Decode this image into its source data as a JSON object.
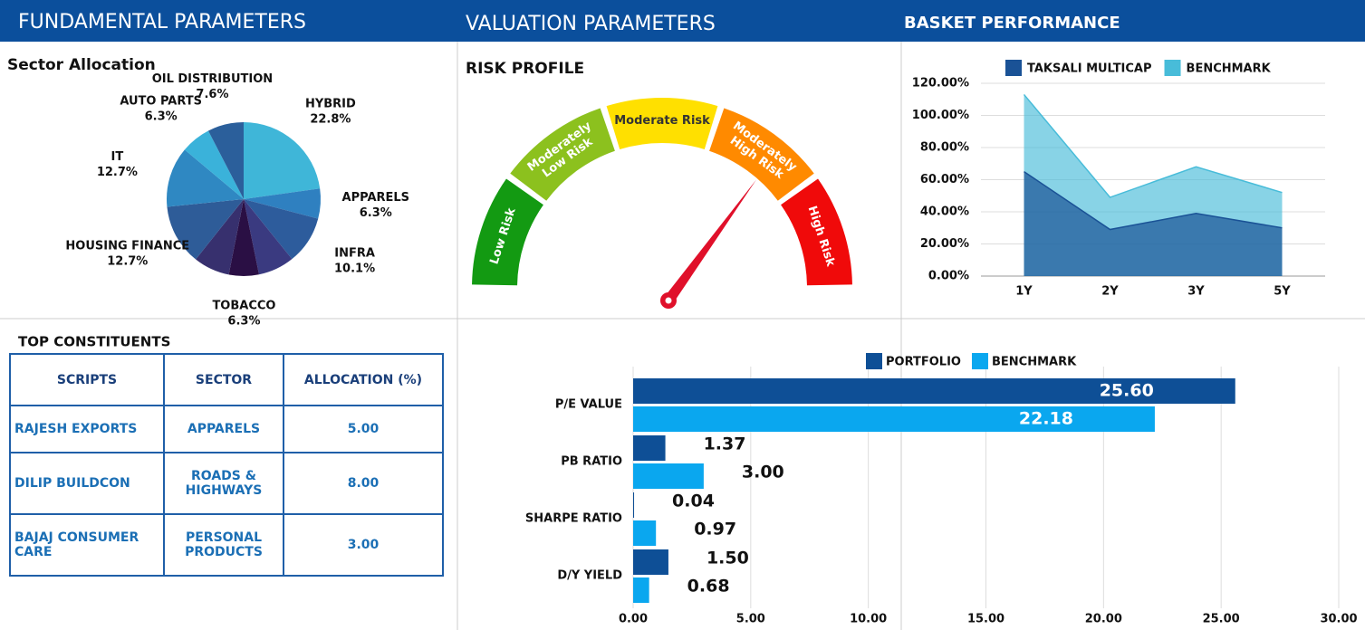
{
  "header": {
    "sections": [
      "FUNDAMENTAL PARAMETERS",
      "VALUATION PARAMETERS",
      "BASKET PERFORMANCE"
    ]
  },
  "chart_data": [
    {
      "type": "pie",
      "title": "Sector Allocation",
      "categories": [
        "HYBRID",
        "APPARELS",
        "INFRA",
        null,
        "TOBACCO",
        null,
        "HOUSING FINANCE",
        "IT",
        "AUTO PARTS",
        "OIL DISTRIBUTION"
      ],
      "values": [
        22.8,
        6.3,
        10.1,
        7.6,
        6.3,
        7.6,
        12.7,
        12.7,
        6.3,
        7.6
      ],
      "value_labels": [
        "22.8%",
        "6.3%",
        "10.1%",
        null,
        "6.3%",
        null,
        "12.7%",
        "12.7%",
        "6.3%",
        "7.6%"
      ],
      "colors": [
        "#3fb6d8",
        "#2f80c0",
        "#2d5c9c",
        "#3a3a80",
        "#2a0f44",
        "#37306e",
        "#2e5c98",
        "#2f88c2",
        "#3ab2da",
        "#2b5f9b"
      ]
    },
    {
      "type": "gauge",
      "title": "RISK PROFILE",
      "categories": [
        "Low Risk",
        "Moderately Low Risk",
        "Moderate Risk",
        "Moderately High Risk",
        "High Risk"
      ],
      "colors": [
        "#139a12",
        "#8cc11e",
        "#ffe000",
        "#ff8a00",
        "#f00a0a"
      ],
      "value": 3.5,
      "range": [
        0,
        5
      ],
      "needle_color": "#e0102a"
    },
    {
      "type": "area",
      "categories": [
        "1Y",
        "2Y",
        "3Y",
        "5Y"
      ],
      "series": [
        {
          "name": "TAKSALI MULTICAP",
          "color": "#1a5296",
          "values": [
            65,
            29,
            39,
            30
          ]
        },
        {
          "name": "BENCHMARK",
          "color": "#48bcd9",
          "values": [
            113,
            49,
            68,
            52
          ]
        }
      ],
      "ylim": [
        0,
        120
      ],
      "yticks": [
        {
          "value": 0,
          "label": "0.00%"
        },
        {
          "value": 20,
          "label": "20.00%"
        },
        {
          "value": 40,
          "label": "40.00%"
        },
        {
          "value": 60,
          "label": "60.00%"
        },
        {
          "value": 80,
          "label": "80.00%"
        },
        {
          "value": 100,
          "label": "100.00%"
        },
        {
          "value": 120,
          "label": "120.00%"
        }
      ],
      "grid": true
    },
    {
      "type": "hbar",
      "categories": [
        "P/E VALUE",
        "PB RATIO",
        "SHARPE RATIO",
        "D/Y YIELD"
      ],
      "series": [
        {
          "name": "PORTFOLIO",
          "color": "#0e4f96",
          "values": [
            25.6,
            1.37,
            0.04,
            1.5
          ],
          "value_labels": [
            "25.60",
            "1.37",
            "0.04",
            "1.50"
          ]
        },
        {
          "name": "BENCHMARK",
          "color": "#0aa7ef",
          "values": [
            22.18,
            3.0,
            0.97,
            0.68
          ],
          "value_labels": [
            "22.18",
            "3.00",
            "0.97",
            "0.68"
          ]
        }
      ],
      "xlim": [
        0,
        30
      ],
      "xticks": [
        {
          "value": 0,
          "label": "0.00"
        },
        {
          "value": 5,
          "label": "5.00"
        },
        {
          "value": 10,
          "label": "10.00"
        },
        {
          "value": 15,
          "label": "15.00"
        },
        {
          "value": 20,
          "label": "20.00"
        },
        {
          "value": 25,
          "label": "25.00"
        },
        {
          "value": 30,
          "label": "30.00"
        }
      ],
      "grid": true
    }
  ],
  "table": {
    "title": "TOP CONSTITUENTS",
    "columns": [
      "SCRIPTS",
      "SECTOR",
      "ALLOCATION (%)"
    ],
    "rows": [
      [
        "RAJESH EXPORTS",
        "APPARELS",
        "5.00"
      ],
      [
        "DILIP BUILDCON",
        "ROADS & HIGHWAYS",
        "8.00"
      ],
      [
        "BAJAJ CONSUMER CARE",
        "PERSONAL PRODUCTS",
        "3.00"
      ]
    ]
  }
}
